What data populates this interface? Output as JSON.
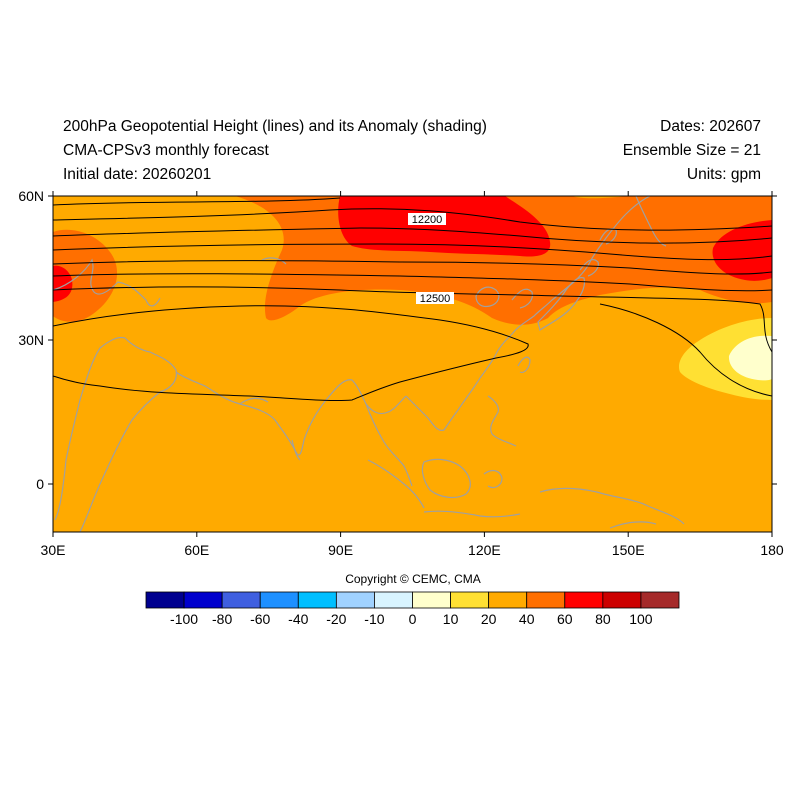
{
  "header": {
    "title": "200hPa Geopotential Height (lines) and its Anomaly (shading)",
    "subtitle": "CMA-CPSv3 monthly forecast",
    "initial_date": "Initial date: 20260201",
    "dates": "Dates: 202607",
    "ensemble_size": "Ensemble Size = 21",
    "units": "Units: gpm"
  },
  "map": {
    "lon_range": [
      30,
      180
    ],
    "lat_range": [
      -10,
      60
    ],
    "lat_ticks": [
      {
        "value": 60,
        "label": "60N"
      },
      {
        "value": 30,
        "label": "30N"
      },
      {
        "value": 0,
        "label": "0"
      }
    ],
    "lon_ticks": [
      {
        "value": 30,
        "label": "30E"
      },
      {
        "value": 60,
        "label": "60E"
      },
      {
        "value": 90,
        "label": "90E"
      },
      {
        "value": 120,
        "label": "120E"
      },
      {
        "value": 150,
        "label": "150E"
      },
      {
        "value": 180,
        "label": "180"
      }
    ],
    "contour_labels": [
      "12200",
      "12500"
    ],
    "coastline_color": "#a0a0a0",
    "contour_color": "#000000"
  },
  "colorbar": {
    "colors": [
      "#00008f",
      "#0000cd",
      "#3f5fe0",
      "#1e90ff",
      "#00bfff",
      "#a0d2ff",
      "#d8f4ff",
      "#ffffcc",
      "#ffe033",
      "#ffaa00",
      "#ff6f00",
      "#ff0000",
      "#cc0000",
      "#a52a2a"
    ],
    "labels": [
      "-100",
      "-80",
      "-60",
      "-40",
      "-20",
      "-10",
      "0",
      "10",
      "20",
      "40",
      "60",
      "80",
      "100"
    ]
  },
  "copyright": "Copyright © CEMC, CMA"
}
